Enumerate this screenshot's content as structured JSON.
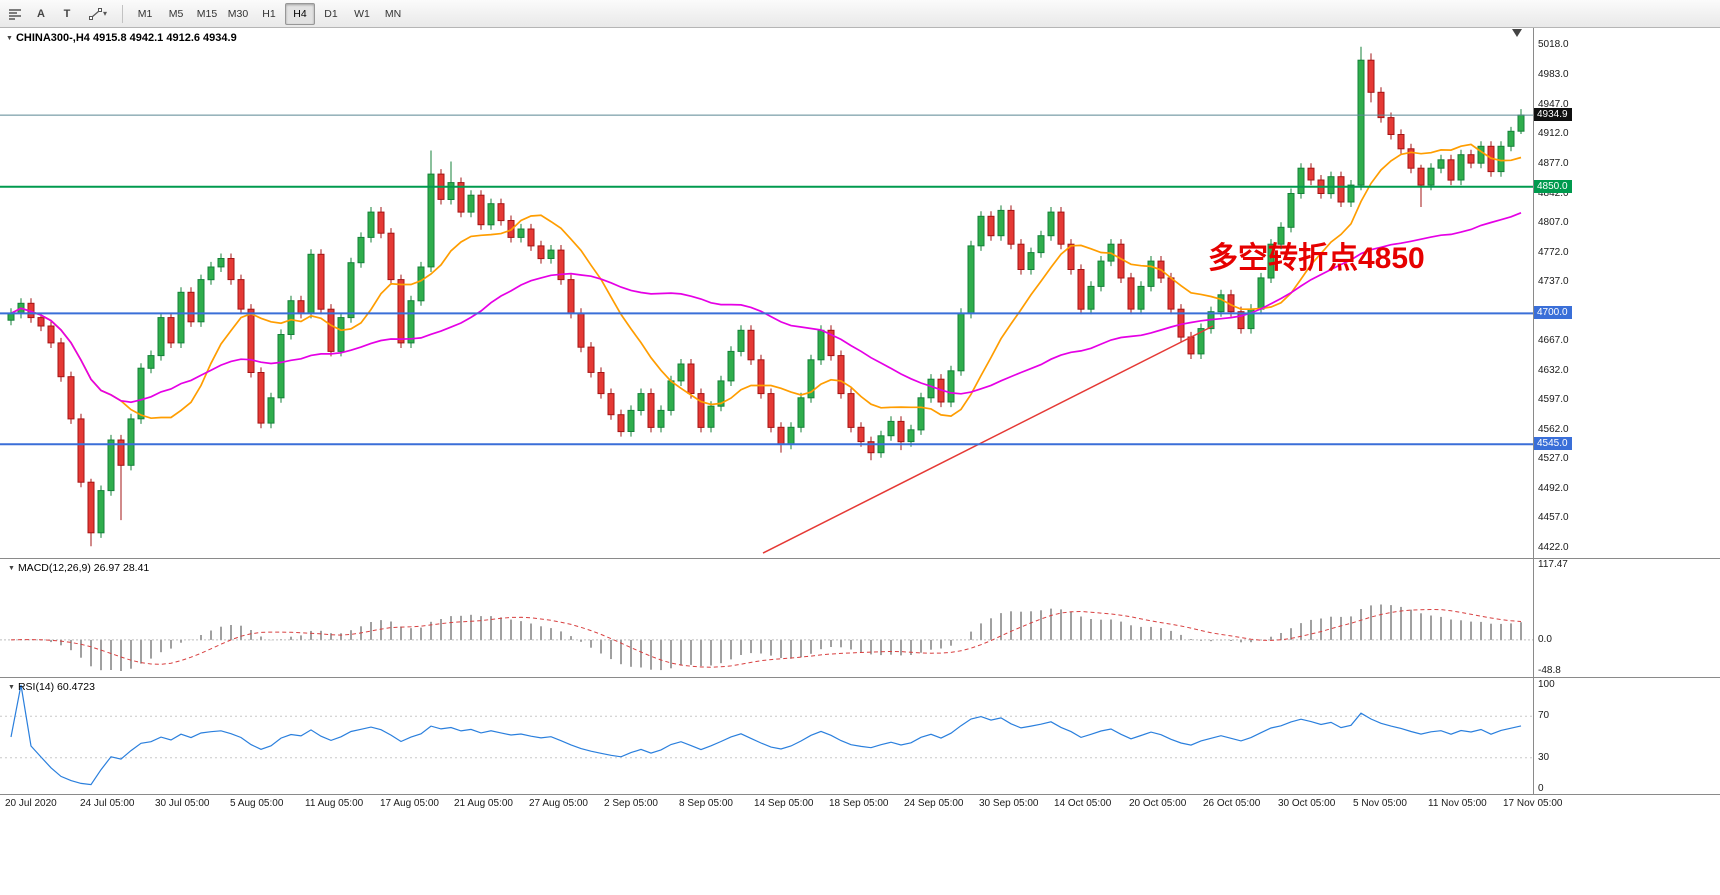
{
  "toolbar": {
    "icon_a": "A",
    "icon_t": "T",
    "icons": [
      {
        "name": "chart-list-icon"
      },
      {
        "name": "cursor-tool-icon"
      },
      {
        "name": "text-tool-icon"
      },
      {
        "name": "draw-tools-icon"
      }
    ],
    "timeframes": [
      "M1",
      "M5",
      "M15",
      "M30",
      "H1",
      "H4",
      "D1",
      "W1",
      "MN"
    ],
    "active_timeframe": "H4"
  },
  "chart": {
    "title": "CHINA300-,H4 4915.8 4942.1 4912.6 4934.9"
  },
  "macd_panel": {
    "label": "MACD(12,26,9) 26.97 28.41",
    "axis_labels": [
      "117.47",
      "0.0",
      "-48.8"
    ]
  },
  "rsi_panel": {
    "label": "RSI(14) 60.4723",
    "axis_labels": [
      "100",
      "70",
      "30",
      "0"
    ]
  },
  "chart_data": {
    "type": "candlestick",
    "symbol": "CHINA300-",
    "timeframe": "H4",
    "last_ohlc": {
      "open": 4915.8,
      "high": 4942.1,
      "low": 4912.6,
      "close": 4934.9
    },
    "ylim": [
      4422,
      5018
    ],
    "price_axis_labels": [
      "5018.0",
      "4983.0",
      "4947.0",
      "4912.0",
      "4877.0",
      "4842.0",
      "4807.0",
      "4772.0",
      "4737.0",
      "4702.0",
      "4667.0",
      "4632.0",
      "4597.0",
      "4562.0",
      "4527.0",
      "4492.0",
      "4457.0",
      "4422.0"
    ],
    "time_labels": [
      "20 Jul 2020",
      "24 Jul 05:00",
      "30 Jul 05:00",
      "5 Aug 05:00",
      "11 Aug 05:00",
      "17 Aug 05:00",
      "21 Aug 05:00",
      "27 Aug 05:00",
      "2 Sep 05:00",
      "8 Sep 05:00",
      "14 Sep 05:00",
      "18 Sep 05:00",
      "24 Sep 05:00",
      "30 Sep 05:00",
      "14 Oct 05:00",
      "20 Oct 05:00",
      "26 Oct 05:00",
      "30 Oct 05:00",
      "5 Nov 05:00",
      "11 Nov 05:00",
      "17 Nov 05:00"
    ],
    "candles": [
      [
        4692,
        4706,
        4686,
        4700
      ],
      [
        4700,
        4718,
        4694,
        4712
      ],
      [
        4712,
        4718,
        4689,
        4695
      ],
      [
        4695,
        4701,
        4679,
        4685
      ],
      [
        4685,
        4691,
        4659,
        4665
      ],
      [
        4665,
        4671,
        4619,
        4625
      ],
      [
        4625,
        4631,
        4569,
        4575
      ],
      [
        4575,
        4581,
        4494,
        4500
      ],
      [
        4500,
        4504,
        4424,
        4440
      ],
      [
        4440,
        4496,
        4434,
        4490
      ],
      [
        4490,
        4556,
        4484,
        4550
      ],
      [
        4550,
        4556,
        4455,
        4520
      ],
      [
        4520,
        4581,
        4514,
        4575
      ],
      [
        4575,
        4641,
        4569,
        4635
      ],
      [
        4635,
        4656,
        4629,
        4650
      ],
      [
        4650,
        4701,
        4644,
        4695
      ],
      [
        4695,
        4701,
        4659,
        4665
      ],
      [
        4665,
        4731,
        4659,
        4725
      ],
      [
        4725,
        4731,
        4684,
        4690
      ],
      [
        4690,
        4746,
        4684,
        4740
      ],
      [
        4740,
        4761,
        4734,
        4755
      ],
      [
        4755,
        4771,
        4749,
        4765
      ],
      [
        4765,
        4771,
        4734,
        4740
      ],
      [
        4740,
        4746,
        4699,
        4705
      ],
      [
        4705,
        4711,
        4624,
        4630
      ],
      [
        4630,
        4636,
        4564,
        4570
      ],
      [
        4570,
        4606,
        4564,
        4600
      ],
      [
        4600,
        4681,
        4594,
        4675
      ],
      [
        4675,
        4721,
        4669,
        4715
      ],
      [
        4715,
        4721,
        4694,
        4700
      ],
      [
        4700,
        4776,
        4694,
        4770
      ],
      [
        4770,
        4776,
        4699,
        4705
      ],
      [
        4705,
        4711,
        4649,
        4655
      ],
      [
        4655,
        4701,
        4649,
        4695
      ],
      [
        4695,
        4766,
        4689,
        4760
      ],
      [
        4760,
        4796,
        4754,
        4790
      ],
      [
        4790,
        4826,
        4784,
        4820
      ],
      [
        4820,
        4826,
        4789,
        4795
      ],
      [
        4795,
        4801,
        4734,
        4740
      ],
      [
        4740,
        4746,
        4659,
        4665
      ],
      [
        4665,
        4721,
        4659,
        4715
      ],
      [
        4715,
        4761,
        4709,
        4755
      ],
      [
        4755,
        4893,
        4749,
        4865
      ],
      [
        4865,
        4871,
        4829,
        4835
      ],
      [
        4835,
        4880,
        4829,
        4855
      ],
      [
        4855,
        4861,
        4814,
        4820
      ],
      [
        4820,
        4846,
        4814,
        4840
      ],
      [
        4840,
        4846,
        4799,
        4805
      ],
      [
        4805,
        4836,
        4799,
        4830
      ],
      [
        4830,
        4836,
        4804,
        4810
      ],
      [
        4810,
        4816,
        4784,
        4790
      ],
      [
        4790,
        4806,
        4784,
        4800
      ],
      [
        4800,
        4806,
        4774,
        4780
      ],
      [
        4780,
        4786,
        4759,
        4765
      ],
      [
        4765,
        4781,
        4759,
        4775
      ],
      [
        4775,
        4781,
        4734,
        4740
      ],
      [
        4740,
        4746,
        4694,
        4700
      ],
      [
        4700,
        4706,
        4654,
        4660
      ],
      [
        4660,
        4666,
        4624,
        4630
      ],
      [
        4630,
        4636,
        4599,
        4605
      ],
      [
        4605,
        4611,
        4574,
        4580
      ],
      [
        4580,
        4586,
        4554,
        4560
      ],
      [
        4560,
        4591,
        4554,
        4585
      ],
      [
        4585,
        4611,
        4579,
        4605
      ],
      [
        4605,
        4611,
        4559,
        4565
      ],
      [
        4565,
        4591,
        4559,
        4585
      ],
      [
        4585,
        4626,
        4579,
        4620
      ],
      [
        4620,
        4646,
        4614,
        4640
      ],
      [
        4640,
        4646,
        4599,
        4605
      ],
      [
        4605,
        4611,
        4559,
        4565
      ],
      [
        4565,
        4596,
        4559,
        4590
      ],
      [
        4590,
        4626,
        4584,
        4620
      ],
      [
        4620,
        4661,
        4614,
        4655
      ],
      [
        4655,
        4686,
        4649,
        4680
      ],
      [
        4680,
        4686,
        4639,
        4645
      ],
      [
        4645,
        4651,
        4599,
        4605
      ],
      [
        4605,
        4611,
        4559,
        4565
      ],
      [
        4565,
        4571,
        4535,
        4545
      ],
      [
        4545,
        4571,
        4539,
        4565
      ],
      [
        4565,
        4606,
        4559,
        4600
      ],
      [
        4600,
        4651,
        4594,
        4645
      ],
      [
        4645,
        4686,
        4639,
        4680
      ],
      [
        4680,
        4686,
        4644,
        4650
      ],
      [
        4650,
        4656,
        4599,
        4605
      ],
      [
        4605,
        4611,
        4559,
        4565
      ],
      [
        4565,
        4571,
        4542,
        4548
      ],
      [
        4548,
        4554,
        4526,
        4535
      ],
      [
        4535,
        4561,
        4529,
        4555
      ],
      [
        4555,
        4578,
        4549,
        4572
      ],
      [
        4572,
        4578,
        4538,
        4548
      ],
      [
        4548,
        4568,
        4542,
        4562
      ],
      [
        4562,
        4606,
        4556,
        4600
      ],
      [
        4600,
        4628,
        4594,
        4622
      ],
      [
        4622,
        4628,
        4589,
        4595
      ],
      [
        4595,
        4638,
        4589,
        4632
      ],
      [
        4632,
        4706,
        4626,
        4700
      ],
      [
        4700,
        4786,
        4694,
        4780
      ],
      [
        4780,
        4821,
        4774,
        4815
      ],
      [
        4815,
        4821,
        4786,
        4792
      ],
      [
        4792,
        4828,
        4786,
        4822
      ],
      [
        4822,
        4828,
        4776,
        4782
      ],
      [
        4782,
        4788,
        4746,
        4752
      ],
      [
        4752,
        4778,
        4746,
        4772
      ],
      [
        4772,
        4798,
        4766,
        4792
      ],
      [
        4792,
        4826,
        4786,
        4820
      ],
      [
        4820,
        4826,
        4776,
        4782
      ],
      [
        4782,
        4788,
        4746,
        4752
      ],
      [
        4752,
        4758,
        4699,
        4705
      ],
      [
        4705,
        4738,
        4699,
        4732
      ],
      [
        4732,
        4768,
        4726,
        4762
      ],
      [
        4762,
        4788,
        4756,
        4782
      ],
      [
        4782,
        4788,
        4736,
        4742
      ],
      [
        4742,
        4748,
        4699,
        4705
      ],
      [
        4705,
        4738,
        4699,
        4732
      ],
      [
        4732,
        4768,
        4726,
        4762
      ],
      [
        4762,
        4768,
        4736,
        4742
      ],
      [
        4742,
        4748,
        4699,
        4705
      ],
      [
        4705,
        4711,
        4666,
        4672
      ],
      [
        4672,
        4678,
        4646,
        4652
      ],
      [
        4652,
        4688,
        4646,
        4682
      ],
      [
        4682,
        4708,
        4676,
        4702
      ],
      [
        4702,
        4728,
        4696,
        4722
      ],
      [
        4722,
        4728,
        4696,
        4702
      ],
      [
        4702,
        4708,
        4676,
        4682
      ],
      [
        4682,
        4711,
        4676,
        4705
      ],
      [
        4705,
        4748,
        4699,
        4742
      ],
      [
        4742,
        4788,
        4736,
        4782
      ],
      [
        4782,
        4808,
        4776,
        4802
      ],
      [
        4802,
        4848,
        4796,
        4842
      ],
      [
        4842,
        4878,
        4836,
        4872
      ],
      [
        4872,
        4878,
        4852,
        4858
      ],
      [
        4858,
        4864,
        4836,
        4842
      ],
      [
        4842,
        4868,
        4836,
        4862
      ],
      [
        4862,
        4868,
        4826,
        4832
      ],
      [
        4832,
        4858,
        4826,
        4852
      ],
      [
        4852,
        5016,
        4846,
        5000
      ],
      [
        5000,
        5008,
        4950,
        4962
      ],
      [
        4962,
        4968,
        4926,
        4932
      ],
      [
        4932,
        4938,
        4906,
        4912
      ],
      [
        4912,
        4918,
        4889,
        4895
      ],
      [
        4895,
        4901,
        4866,
        4872
      ],
      [
        4872,
        4876,
        4826,
        4852
      ],
      [
        4852,
        4878,
        4846,
        4872
      ],
      [
        4872,
        4888,
        4866,
        4882
      ],
      [
        4882,
        4888,
        4852,
        4858
      ],
      [
        4858,
        4894,
        4852,
        4888
      ],
      [
        4888,
        4894,
        4872,
        4878
      ],
      [
        4878,
        4904,
        4872,
        4898
      ],
      [
        4898,
        4904,
        4862,
        4868
      ],
      [
        4868,
        4904,
        4862,
        4898
      ],
      [
        4898,
        4921,
        4892,
        4915.8
      ],
      [
        4915.8,
        4942.1,
        4912.6,
        4934.9
      ]
    ],
    "colors": {
      "up": "#2fae4c",
      "up_border": "#15803a",
      "down": "#e53935",
      "down_border": "#a31515"
    },
    "moving_averages": [
      {
        "name": "ma-fast",
        "period": 12,
        "color": "#ff9d00"
      },
      {
        "name": "ma-slow",
        "period": 40,
        "color": "#e500e5"
      }
    ],
    "hlines": [
      {
        "name": "current-price-line",
        "price": 4934.9,
        "label": "4934.9",
        "line_color": "#5a8793",
        "badge_color": "#101010",
        "width": 1
      },
      {
        "name": "resistance-line-4850",
        "price": 4850,
        "label": "4850.0",
        "line_color": "#009a4e",
        "badge_color": "#009a4e",
        "width": 2
      },
      {
        "name": "support-line-4700",
        "price": 4700,
        "label": "4700.0",
        "line_color": "#3a6fd8",
        "badge_color": "#3a6fd8",
        "width": 2
      },
      {
        "name": "support-line-4545",
        "price": 4545,
        "label": "4545.0",
        "line_color": "#3a6fd8",
        "badge_color": "#3a6fd8",
        "width": 2
      }
    ],
    "trendline": {
      "name": "ascending-trendline",
      "bar1": 75.5,
      "price1": 4416,
      "bar2": 120.5,
      "price2": 4685,
      "color": "#e53935",
      "width": 1.5
    },
    "annotation": {
      "text": "多空转折点4850",
      "color": "#e60000",
      "bar": 120,
      "price": 4775
    },
    "macd": {
      "params": [
        12,
        26,
        9
      ],
      "main": 26.97,
      "signal": 28.41,
      "axis_max": 117.47,
      "axis_min": -48.8,
      "hist_color": "#a0a0a0",
      "signal_color": "#d84040"
    },
    "rsi": {
      "period": 14,
      "value": 60.4723,
      "range": [
        0,
        100
      ],
      "levels": [
        70,
        30
      ],
      "color": "#2a7fdd"
    }
  }
}
